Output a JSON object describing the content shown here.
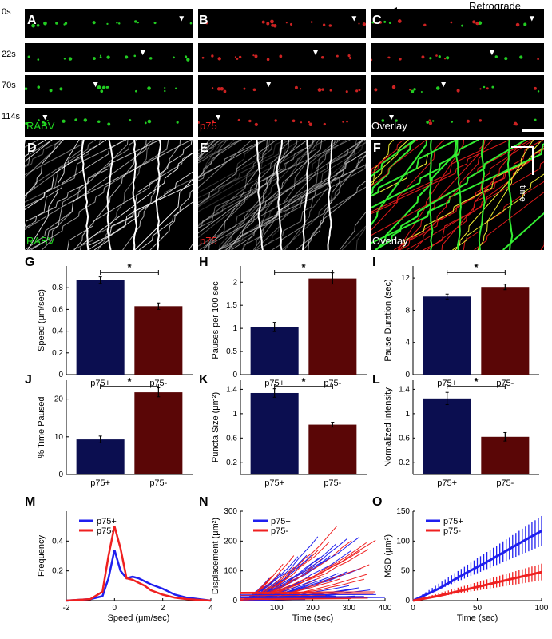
{
  "retrograde_label": "Retrograde",
  "time_labels": [
    "0s",
    "22s",
    "70s",
    "114s"
  ],
  "panels": {
    "A": {
      "letter": "A",
      "channel": "RABV",
      "channel_color": "#22dd22"
    },
    "B": {
      "letter": "B",
      "channel": "p75",
      "channel_color": "#ee2222"
    },
    "C": {
      "letter": "C",
      "channel": "Overlay",
      "channel_color": "#ffffff"
    },
    "D": {
      "letter": "D",
      "channel": "RABV",
      "channel_color": "#22dd22"
    },
    "E": {
      "letter": "E",
      "channel": "p75",
      "channel_color": "#ee2222"
    },
    "F": {
      "letter": "F",
      "channel": "Overlay",
      "channel_color": "#ffffff",
      "time_label": "time"
    }
  },
  "colors": {
    "p75_plus": "#0b0e50",
    "p75_minus": "#5a0606",
    "line_plus": "#1f1fef",
    "line_minus": "#ef2020"
  },
  "chart_data": [
    {
      "id": "G",
      "type": "bar",
      "categories": [
        "p75+",
        "p75-"
      ],
      "values": [
        0.87,
        0.63
      ],
      "errors": [
        0.03,
        0.03
      ],
      "ylabel": "Speed (μm/sec)",
      "ylim": [
        0,
        1.0
      ],
      "yticks": [
        0,
        0.2,
        0.4,
        0.6,
        0.8
      ],
      "significance": "*"
    },
    {
      "id": "H",
      "type": "bar",
      "categories": [
        "p75+",
        "p75-"
      ],
      "values": [
        1.03,
        2.08
      ],
      "errors": [
        0.1,
        0.12
      ],
      "ylabel": "Pauses per 100 sec",
      "ylim": [
        0,
        2.35
      ],
      "yticks": [
        0,
        0.5,
        1,
        1.5,
        2
      ],
      "significance": "*"
    },
    {
      "id": "I",
      "type": "bar",
      "categories": [
        "p75+",
        "p75-"
      ],
      "values": [
        9.7,
        10.9
      ],
      "errors": [
        0.3,
        0.35
      ],
      "ylabel": "Pause Duration (sec)",
      "ylim": [
        0,
        13.5
      ],
      "yticks": [
        0,
        4,
        8,
        12
      ],
      "significance": "*"
    },
    {
      "id": "J",
      "type": "bar",
      "categories": [
        "p75+",
        "p75-"
      ],
      "values": [
        9.3,
        21.8
      ],
      "errors": [
        0.9,
        1.2
      ],
      "ylabel": "% Time Paused",
      "ylim": [
        0,
        25
      ],
      "yticks": [
        0,
        10,
        20
      ],
      "significance": "*"
    },
    {
      "id": "K",
      "type": "bar",
      "categories": [
        "p75+",
        "p75-"
      ],
      "values": [
        1.34,
        0.82
      ],
      "errors": [
        0.07,
        0.04
      ],
      "ylabel": "Puncta Size (μm²)",
      "ylim": [
        0,
        1.55
      ],
      "yticks": [
        0.2,
        0.6,
        1,
        1.4
      ],
      "significance": "*"
    },
    {
      "id": "L",
      "type": "bar",
      "categories": [
        "p75+",
        "p75-"
      ],
      "values": [
        1.25,
        0.62
      ],
      "errors": [
        0.1,
        0.07
      ],
      "ylabel": "Normalized Intensity",
      "ylim": [
        0,
        1.55
      ],
      "yticks": [
        0.2,
        0.6,
        1,
        1.4
      ],
      "significance": "*"
    },
    {
      "id": "M",
      "type": "line",
      "xlabel": "Speed (μm/sec)",
      "ylabel": "Frequency",
      "xlim": [
        -2,
        4
      ],
      "ylim": [
        0,
        0.6
      ],
      "xticks": [
        -2,
        0,
        2,
        4
      ],
      "yticks": [
        0.2,
        0.4
      ],
      "legend": "top-left",
      "x": [
        -2,
        -1,
        -0.5,
        -0.25,
        0,
        0.25,
        0.5,
        0.75,
        1,
        1.25,
        1.5,
        2,
        2.5,
        3,
        4
      ],
      "series": [
        {
          "name": "p75+",
          "values": [
            0,
            0.01,
            0.03,
            0.15,
            0.34,
            0.2,
            0.15,
            0.16,
            0.15,
            0.13,
            0.11,
            0.08,
            0.04,
            0.02,
            0
          ]
        },
        {
          "name": "p75-",
          "values": [
            0,
            0.01,
            0.06,
            0.3,
            0.5,
            0.35,
            0.15,
            0.14,
            0.12,
            0.1,
            0.07,
            0.04,
            0.02,
            0.01,
            0
          ]
        }
      ]
    },
    {
      "id": "N",
      "type": "line",
      "xlabel": "Time (sec)",
      "ylabel": "Displacement (μm²)",
      "xlim": [
        0,
        400
      ],
      "ylim": [
        0,
        300
      ],
      "xticks": [
        100,
        200,
        300,
        400
      ],
      "yticks": [
        0,
        100,
        200,
        300
      ],
      "legend": "top-left",
      "series": [
        {
          "name": "p75+"
        },
        {
          "name": "p75-"
        }
      ]
    },
    {
      "id": "O",
      "type": "line",
      "xlabel": "Time (sec)",
      "ylabel": "MSD (μm²)",
      "xlim": [
        0,
        100
      ],
      "ylim": [
        0,
        150
      ],
      "xticks": [
        0,
        50,
        100
      ],
      "yticks": [
        0,
        50,
        100,
        150
      ],
      "legend": "top-left",
      "series": [
        {
          "name": "p75+",
          "x": [
            0,
            20,
            40,
            60,
            80,
            100
          ],
          "values": [
            0,
            20,
            45,
            68,
            93,
            117
          ],
          "errors": [
            0,
            6,
            12,
            17,
            22,
            25
          ]
        },
        {
          "name": "p75-",
          "x": [
            0,
            20,
            40,
            60,
            80,
            100
          ],
          "values": [
            0,
            8,
            18,
            28,
            38,
            48
          ],
          "errors": [
            0,
            3,
            6,
            9,
            12,
            14
          ]
        }
      ]
    }
  ]
}
